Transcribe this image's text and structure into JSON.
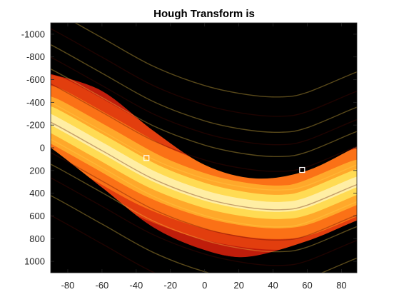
{
  "chart_data": {
    "type": "heatmap",
    "title": "Hough Transform is",
    "xlabel": "",
    "ylabel": "",
    "xlim": [
      -90,
      89
    ],
    "ylim": [
      -1100,
      1100
    ],
    "y_reversed": true,
    "x_ticks": [
      -80,
      -60,
      -40,
      -20,
      0,
      20,
      40,
      60,
      80
    ],
    "y_ticks": [
      -1000,
      -800,
      -600,
      -400,
      -200,
      0,
      200,
      400,
      600,
      800,
      1000
    ],
    "colormap": "hot",
    "background_color": "#000000",
    "accumulator_band": {
      "lower_edge": [
        {
          "theta": -90,
          "rho": 0
        },
        {
          "theta": -60,
          "rho": 350
        },
        {
          "theta": -30,
          "rho": 700
        },
        {
          "theta": 0,
          "rho": 900
        },
        {
          "theta": 25,
          "rho": 960
        },
        {
          "theta": 60,
          "rho": 820
        },
        {
          "theta": 89,
          "rho": 640
        }
      ],
      "upper_edge": [
        {
          "theta": -90,
          "rho": -650
        },
        {
          "theta": -60,
          "rho": -500
        },
        {
          "theta": -30,
          "rho": -150
        },
        {
          "theta": 0,
          "rho": 150
        },
        {
          "theta": 30,
          "rho": 270
        },
        {
          "theta": 60,
          "rho": 200
        },
        {
          "theta": 89,
          "rho": -10
        }
      ],
      "bright_core": [
        {
          "theta": -90,
          "rho": -250
        },
        {
          "theta": -60,
          "rho": 0
        },
        {
          "theta": -30,
          "rho": 250
        },
        {
          "theta": 0,
          "rho": 420
        },
        {
          "theta": 25,
          "rho": 500
        },
        {
          "theta": 45,
          "rho": 520
        },
        {
          "theta": 60,
          "rho": 480
        },
        {
          "theta": 89,
          "rho": 300
        }
      ]
    },
    "peaks": [
      {
        "theta": -34,
        "rho": 90
      },
      {
        "theta": 57,
        "rho": 195
      }
    ],
    "peak_marker_color": "#ffffff"
  }
}
